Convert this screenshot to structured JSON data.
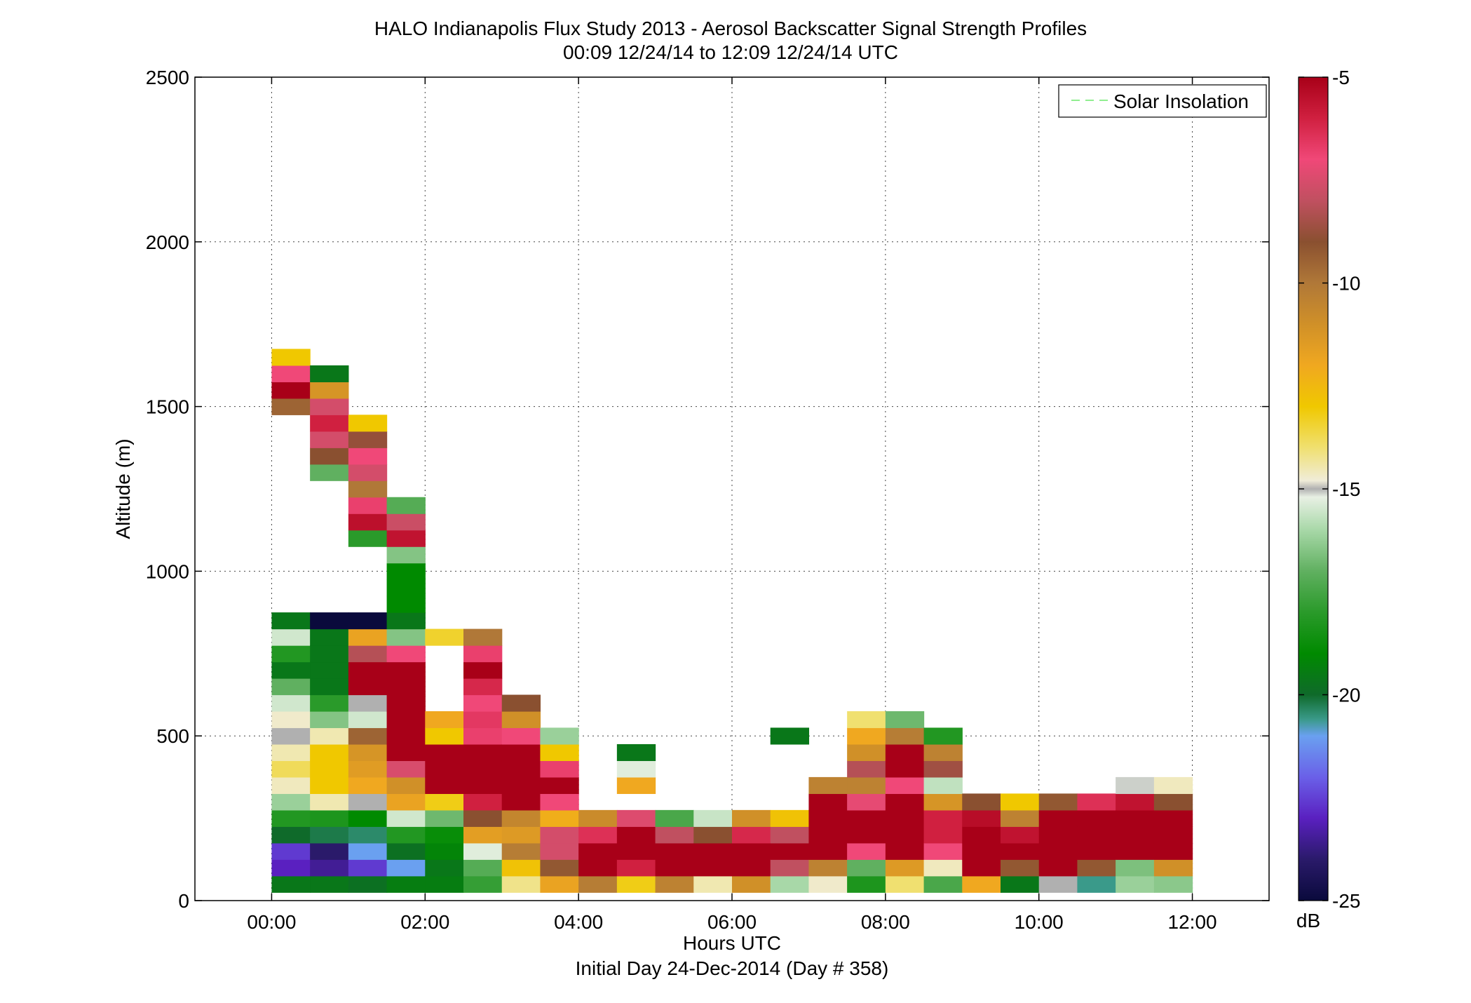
{
  "chart_data": {
    "type": "heatmap",
    "title": "HALO Indianapolis Flux Study 2013 - Aerosol Backscatter Signal Strength Profiles",
    "subtitle": "00:09 12/24/14 to 12:09 12/24/14  UTC",
    "xlabel": "Hours UTC",
    "xlabel2": "Initial Day 24-Dec-2014 (Day # 358)",
    "ylabel": "Altitude (m)",
    "xlim": [
      -1,
      13
    ],
    "ylim": [
      0,
      2500
    ],
    "grid": true,
    "x_ticks": [
      "00:00",
      "02:00",
      "04:00",
      "06:00",
      "08:00",
      "10:00",
      "12:00"
    ],
    "x_tick_values": [
      0,
      2,
      4,
      6,
      8,
      10,
      12
    ],
    "y_ticks": [
      "0",
      "500",
      "1000",
      "1500",
      "2000",
      "2500"
    ],
    "y_tick_values": [
      0,
      500,
      1000,
      1500,
      2000,
      2500
    ],
    "legend": {
      "label": "Solar Insolation",
      "placement": "top-right",
      "color": "#90ee90"
    },
    "colorbar": {
      "label": "dB",
      "ticks": [
        "-5",
        "-10",
        "-15",
        "-20",
        "-25"
      ],
      "tick_values": [
        -5,
        -10,
        -15,
        -20,
        -25
      ],
      "range": [
        -25,
        -5
      ],
      "colormap": [
        [
          -25,
          "#0a0a3c"
        ],
        [
          -24,
          "#2a1a6a"
        ],
        [
          -23,
          "#5a20c0"
        ],
        [
          -22,
          "#6a60e8"
        ],
        [
          -21,
          "#6aa0f0"
        ],
        [
          -20.6,
          "#3a9a8a"
        ],
        [
          -20,
          "#0f6a2a"
        ],
        [
          -19,
          "#008a00"
        ],
        [
          -18,
          "#2a9a2a"
        ],
        [
          -17,
          "#60b060"
        ],
        [
          -16,
          "#a8d8a8"
        ],
        [
          -15.2,
          "#e8f0e4"
        ],
        [
          -15,
          "#b0b0b0"
        ],
        [
          -14.8,
          "#f0ecd8"
        ],
        [
          -14,
          "#f0e070"
        ],
        [
          -13,
          "#f0c800"
        ],
        [
          -12,
          "#f0a820"
        ],
        [
          -11,
          "#d09028"
        ],
        [
          -10,
          "#b07838"
        ],
        [
          -9,
          "#8a5030"
        ],
        [
          -8,
          "#c05060"
        ],
        [
          -7,
          "#f04878"
        ],
        [
          -6,
          "#d02040"
        ],
        [
          -5,
          "#a80018"
        ]
      ]
    },
    "x_bin_hours": 0.5,
    "y_bin_m": 50,
    "columns": [
      {
        "x": 0.25,
        "cells": [
          [
            50,
            -19.6
          ],
          [
            100,
            -23
          ],
          [
            150,
            -22.6
          ],
          [
            200,
            -20
          ],
          [
            250,
            -18.2
          ],
          [
            300,
            -16.2
          ],
          [
            350,
            -14.6
          ],
          [
            400,
            -13.8
          ],
          [
            450,
            -14.5
          ],
          [
            500,
            -15
          ],
          [
            550,
            -14.7
          ],
          [
            600,
            -15.5
          ],
          [
            650,
            -17
          ],
          [
            700,
            -19.6
          ],
          [
            750,
            -18.2
          ],
          [
            800,
            -15.5
          ],
          [
            850,
            -19.6
          ],
          [
            1500,
            -9.5
          ],
          [
            1550,
            -5
          ],
          [
            1600,
            -7
          ],
          [
            1650,
            -13
          ]
        ]
      },
      {
        "x": 0.75,
        "cells": [
          [
            50,
            -19.6
          ],
          [
            100,
            -23.5
          ],
          [
            150,
            -24
          ],
          [
            200,
            -20.2
          ],
          [
            250,
            -18.3
          ],
          [
            300,
            -14.5
          ],
          [
            350,
            -13
          ],
          [
            400,
            -13
          ],
          [
            450,
            -13
          ],
          [
            500,
            -14.5
          ],
          [
            550,
            -16.5
          ],
          [
            600,
            -18
          ],
          [
            650,
            -19.6
          ],
          [
            700,
            -19.6
          ],
          [
            750,
            -19.6
          ],
          [
            800,
            -19.6
          ],
          [
            850,
            -25
          ],
          [
            1300,
            -17
          ],
          [
            1350,
            -9
          ],
          [
            1400,
            -7.6
          ],
          [
            1450,
            -6
          ],
          [
            1500,
            -7.6
          ],
          [
            1550,
            -11.2
          ],
          [
            1600,
            -19.6
          ]
        ]
      },
      {
        "x": 1.25,
        "cells": [
          [
            50,
            -19.8
          ],
          [
            100,
            -22.6
          ],
          [
            150,
            -21
          ],
          [
            200,
            -20.4
          ],
          [
            250,
            -19
          ],
          [
            300,
            -15
          ],
          [
            350,
            -12
          ],
          [
            400,
            -11.5
          ],
          [
            450,
            -11.2
          ],
          [
            500,
            -9.5
          ],
          [
            550,
            -15.5
          ],
          [
            600,
            -15
          ],
          [
            650,
            -5
          ],
          [
            700,
            -5
          ],
          [
            750,
            -8.2
          ],
          [
            800,
            -11.8
          ],
          [
            850,
            -25
          ],
          [
            1100,
            -18
          ],
          [
            1150,
            -5.5
          ],
          [
            1200,
            -6.8
          ],
          [
            1250,
            -10
          ],
          [
            1300,
            -7.6
          ],
          [
            1350,
            -7
          ],
          [
            1400,
            -8.8
          ],
          [
            1450,
            -13
          ]
        ]
      },
      {
        "x": 1.75,
        "cells": [
          [
            50,
            -19.4
          ],
          [
            100,
            -21
          ],
          [
            150,
            -19.8
          ],
          [
            200,
            -18.2
          ],
          [
            250,
            -15.5
          ],
          [
            300,
            -11.8
          ],
          [
            350,
            -11
          ],
          [
            400,
            -7.5
          ],
          [
            450,
            -5
          ],
          [
            500,
            -5
          ],
          [
            550,
            -5
          ],
          [
            600,
            -5
          ],
          [
            650,
            -5
          ],
          [
            700,
            -5
          ],
          [
            750,
            -7
          ],
          [
            800,
            -16.5
          ],
          [
            850,
            -19.6
          ],
          [
            900,
            -19
          ],
          [
            950,
            -19
          ],
          [
            1000,
            -19
          ],
          [
            1050,
            -16.5
          ],
          [
            1100,
            -5.6
          ],
          [
            1150,
            -7.8
          ],
          [
            1200,
            -17.2
          ]
        ]
      },
      {
        "x": 2.25,
        "cells": [
          [
            50,
            -19.4
          ],
          [
            100,
            -19.6
          ],
          [
            150,
            -19.2
          ],
          [
            200,
            -18.8
          ],
          [
            250,
            -16.8
          ],
          [
            300,
            -13.2
          ],
          [
            350,
            -5
          ],
          [
            400,
            -5
          ],
          [
            450,
            -5
          ],
          [
            500,
            -13
          ],
          [
            550,
            -12
          ],
          [
            800,
            -13.4
          ]
        ]
      },
      {
        "x": 2.75,
        "cells": [
          [
            50,
            -17.8
          ],
          [
            100,
            -17.2
          ],
          [
            150,
            -15.3
          ],
          [
            200,
            -11.6
          ],
          [
            250,
            -9
          ],
          [
            300,
            -6
          ],
          [
            350,
            -5
          ],
          [
            400,
            -5
          ],
          [
            450,
            -5
          ],
          [
            500,
            -6.8
          ],
          [
            550,
            -6.6
          ],
          [
            600,
            -7
          ],
          [
            650,
            -6.2
          ],
          [
            700,
            -5
          ],
          [
            750,
            -6.8
          ],
          [
            800,
            -10
          ]
        ]
      },
      {
        "x": 3.25,
        "cells": [
          [
            50,
            -14.2
          ],
          [
            100,
            -12.8
          ],
          [
            150,
            -10.2
          ],
          [
            200,
            -11.4
          ],
          [
            250,
            -10.6
          ],
          [
            300,
            -5
          ],
          [
            350,
            -5
          ],
          [
            400,
            -5
          ],
          [
            450,
            -5
          ],
          [
            500,
            -7
          ],
          [
            550,
            -11
          ],
          [
            600,
            -9
          ]
        ]
      },
      {
        "x": 3.75,
        "cells": [
          [
            50,
            -11.8
          ],
          [
            100,
            -9.2
          ],
          [
            150,
            -7.6
          ],
          [
            200,
            -7.6
          ],
          [
            250,
            -12.2
          ],
          [
            300,
            -7
          ],
          [
            350,
            -5
          ],
          [
            400,
            -6.8
          ],
          [
            450,
            -13
          ],
          [
            500,
            -16.2
          ]
        ]
      },
      {
        "x": 4.25,
        "cells": [
          [
            50,
            -10.2
          ],
          [
            100,
            -5
          ],
          [
            150,
            -5
          ],
          [
            200,
            -6.4
          ],
          [
            250,
            -10.8
          ]
        ]
      },
      {
        "x": 4.75,
        "cells": [
          [
            50,
            -13.2
          ],
          [
            100,
            -6
          ],
          [
            150,
            -5
          ],
          [
            200,
            -5
          ],
          [
            250,
            -7.4
          ],
          [
            350,
            -12
          ],
          [
            400,
            -15.3
          ],
          [
            450,
            -19.6
          ]
        ]
      },
      {
        "x": 5.25,
        "cells": [
          [
            50,
            -10.4
          ],
          [
            100,
            -5
          ],
          [
            150,
            -5
          ],
          [
            200,
            -8
          ],
          [
            250,
            -17.4
          ]
        ]
      },
      {
        "x": 5.75,
        "cells": [
          [
            50,
            -14.5
          ],
          [
            100,
            -5
          ],
          [
            150,
            -5
          ],
          [
            200,
            -9
          ],
          [
            250,
            -15.6
          ]
        ]
      },
      {
        "x": 6.25,
        "cells": [
          [
            50,
            -11
          ],
          [
            100,
            -5
          ],
          [
            150,
            -5
          ],
          [
            200,
            -6.2
          ],
          [
            250,
            -11
          ]
        ]
      },
      {
        "x": 6.75,
        "cells": [
          [
            50,
            -16
          ],
          [
            100,
            -8
          ],
          [
            150,
            -5
          ],
          [
            200,
            -8
          ],
          [
            250,
            -12.8
          ],
          [
            500,
            -19.6
          ]
        ]
      },
      {
        "x": 7.25,
        "cells": [
          [
            50,
            -14.7
          ],
          [
            100,
            -10.4
          ],
          [
            150,
            -5
          ],
          [
            200,
            -5
          ],
          [
            250,
            -5
          ],
          [
            300,
            -5
          ],
          [
            350,
            -10.4
          ]
        ]
      },
      {
        "x": 7.75,
        "cells": [
          [
            50,
            -18.3
          ],
          [
            100,
            -17
          ],
          [
            150,
            -7
          ],
          [
            200,
            -5
          ],
          [
            250,
            -5
          ],
          [
            300,
            -7.2
          ],
          [
            350,
            -10.4
          ],
          [
            400,
            -8.2
          ],
          [
            450,
            -11
          ],
          [
            500,
            -12
          ],
          [
            550,
            -14
          ]
        ]
      },
      {
        "x": 8.25,
        "cells": [
          [
            50,
            -14
          ],
          [
            100,
            -11.4
          ],
          [
            150,
            -5
          ],
          [
            200,
            -5
          ],
          [
            250,
            -5
          ],
          [
            300,
            -5
          ],
          [
            350,
            -7
          ],
          [
            400,
            -5
          ],
          [
            450,
            -5
          ],
          [
            500,
            -10.2
          ],
          [
            550,
            -16.8
          ]
        ]
      },
      {
        "x": 8.75,
        "cells": [
          [
            50,
            -17.4
          ],
          [
            100,
            -14.6
          ],
          [
            150,
            -7
          ],
          [
            200,
            -6
          ],
          [
            250,
            -6
          ],
          [
            300,
            -11.2
          ],
          [
            350,
            -15.7
          ],
          [
            400,
            -8.6
          ],
          [
            450,
            -10.4
          ],
          [
            500,
            -18.2
          ]
        ]
      },
      {
        "x": 9.25,
        "cells": [
          [
            50,
            -12
          ],
          [
            100,
            -5
          ],
          [
            150,
            -5
          ],
          [
            200,
            -5
          ],
          [
            250,
            -5.4
          ],
          [
            300,
            -9
          ]
        ]
      },
      {
        "x": 9.75,
        "cells": [
          [
            50,
            -19.6
          ],
          [
            100,
            -9.2
          ],
          [
            150,
            -5
          ],
          [
            200,
            -5.6
          ],
          [
            250,
            -10.4
          ],
          [
            300,
            -13
          ]
        ]
      },
      {
        "x": 10.25,
        "cells": [
          [
            50,
            -15
          ],
          [
            100,
            -5
          ],
          [
            150,
            -5
          ],
          [
            200,
            -5
          ],
          [
            250,
            -5
          ],
          [
            300,
            -9.2
          ]
        ]
      },
      {
        "x": 10.75,
        "cells": [
          [
            50,
            -20.6
          ],
          [
            100,
            -9.2
          ],
          [
            150,
            -5
          ],
          [
            200,
            -5
          ],
          [
            250,
            -5
          ],
          [
            300,
            -6.4
          ]
        ]
      },
      {
        "x": 11.25,
        "cells": [
          [
            50,
            -16.2
          ],
          [
            100,
            -16.6
          ],
          [
            150,
            -5
          ],
          [
            200,
            -5
          ],
          [
            250,
            -5
          ],
          [
            300,
            -5.6
          ],
          [
            350,
            -15.1
          ]
        ]
      },
      {
        "x": 11.75,
        "cells": [
          [
            50,
            -16.4
          ],
          [
            100,
            -11
          ],
          [
            150,
            -5
          ],
          [
            200,
            -5
          ],
          [
            250,
            -5
          ],
          [
            300,
            -9
          ],
          [
            350,
            -14.6
          ]
        ]
      }
    ]
  }
}
